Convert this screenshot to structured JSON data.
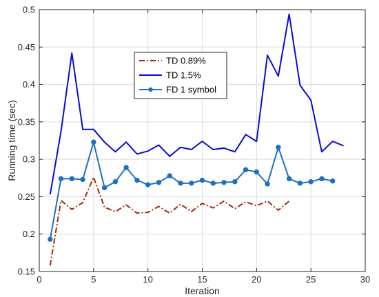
{
  "chart_data": {
    "type": "line",
    "title": "",
    "xlabel": "Iteration",
    "ylabel": "Running time (sec)",
    "xlim": [
      0,
      30
    ],
    "ylim": [
      0.15,
      0.5
    ],
    "xticks": [
      0,
      5,
      10,
      15,
      20,
      25,
      30
    ],
    "yticks": [
      0.15,
      0.2,
      0.25,
      0.3,
      0.35,
      0.4,
      0.45,
      0.5
    ],
    "grid": true,
    "legend_position": "top-center",
    "series": [
      {
        "name": "TD 0.89%",
        "color": "#a0280a",
        "style": "dashdot",
        "x": [
          1,
          2,
          3,
          4,
          5,
          6,
          7,
          8,
          9,
          10,
          11,
          12,
          13,
          14,
          15,
          16,
          17,
          18,
          19,
          20,
          21,
          22,
          23
        ],
        "y": [
          0.158,
          0.245,
          0.233,
          0.242,
          0.276,
          0.236,
          0.23,
          0.239,
          0.228,
          0.229,
          0.237,
          0.228,
          0.24,
          0.23,
          0.241,
          0.235,
          0.244,
          0.234,
          0.243,
          0.238,
          0.244,
          0.232,
          0.244
        ]
      },
      {
        "name": "TD 1.5%",
        "color": "#0a0ad2",
        "style": "solid",
        "x": [
          1,
          2,
          3,
          4,
          5,
          6,
          7,
          8,
          9,
          10,
          11,
          12,
          13,
          14,
          15,
          16,
          17,
          18,
          19,
          20,
          21,
          22,
          23,
          24,
          25,
          26,
          27,
          28
        ],
        "y": [
          0.253,
          0.337,
          0.442,
          0.34,
          0.34,
          0.323,
          0.31,
          0.323,
          0.307,
          0.311,
          0.319,
          0.304,
          0.316,
          0.313,
          0.324,
          0.313,
          0.315,
          0.31,
          0.333,
          0.324,
          0.439,
          0.411,
          0.494,
          0.399,
          0.379,
          0.31,
          0.324,
          0.318
        ]
      },
      {
        "name": "FD 1 symbol",
        "color": "#1f6fc0",
        "style": "solid-marker",
        "x": [
          1,
          2,
          3,
          4,
          5,
          6,
          7,
          8,
          9,
          10,
          11,
          12,
          13,
          14,
          15,
          16,
          17,
          18,
          19,
          20,
          21,
          22,
          23,
          24,
          25,
          26,
          27
        ],
        "y": [
          0.193,
          0.274,
          0.274,
          0.273,
          0.323,
          0.262,
          0.27,
          0.289,
          0.272,
          0.266,
          0.269,
          0.278,
          0.268,
          0.268,
          0.272,
          0.268,
          0.269,
          0.27,
          0.286,
          0.283,
          0.267,
          0.316,
          0.274,
          0.268,
          0.27,
          0.274,
          0.271
        ]
      }
    ]
  }
}
